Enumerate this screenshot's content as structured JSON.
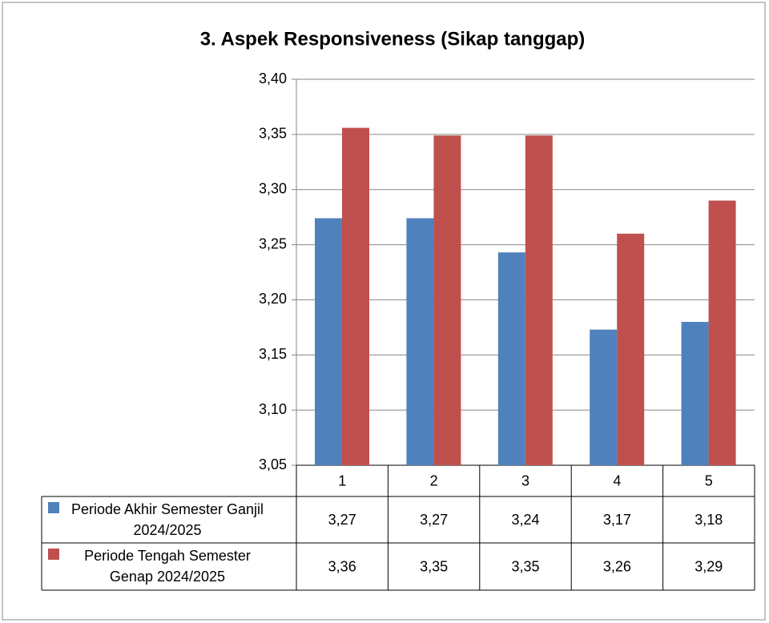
{
  "chart_data": {
    "type": "bar",
    "title": "3. Aspek Responsiveness (Sikap tanggap)",
    "categories": [
      "1",
      "2",
      "3",
      "4",
      "5"
    ],
    "series": [
      {
        "name": "Periode Akhir Semester Ganjil 2024/2025",
        "color": "#4f81bd",
        "values": [
          3.274,
          3.274,
          3.243,
          3.173,
          3.18
        ],
        "value_labels": [
          "3,27",
          "3,27",
          "3,24",
          "3,17",
          "3,18"
        ]
      },
      {
        "name": "Periode Tengah Semester Genap 2024/2025",
        "color": "#c0504d",
        "values": [
          3.356,
          3.349,
          3.349,
          3.26,
          3.29
        ],
        "value_labels": [
          "3,36",
          "3,35",
          "3,35",
          "3,26",
          "3,29"
        ]
      }
    ],
    "ylim": [
      3.05,
      3.4
    ],
    "yticks": [
      {
        "value": 3.05,
        "label": "3,05"
      },
      {
        "value": 3.1,
        "label": "3,10"
      },
      {
        "value": 3.15,
        "label": "3,15"
      },
      {
        "value": 3.2,
        "label": "3,20"
      },
      {
        "value": 3.25,
        "label": "3,25"
      },
      {
        "value": 3.3,
        "label": "3,30"
      },
      {
        "value": 3.35,
        "label": "3,35"
      },
      {
        "value": 3.4,
        "label": "3,40"
      }
    ],
    "grid": true,
    "legend": "data-table"
  }
}
